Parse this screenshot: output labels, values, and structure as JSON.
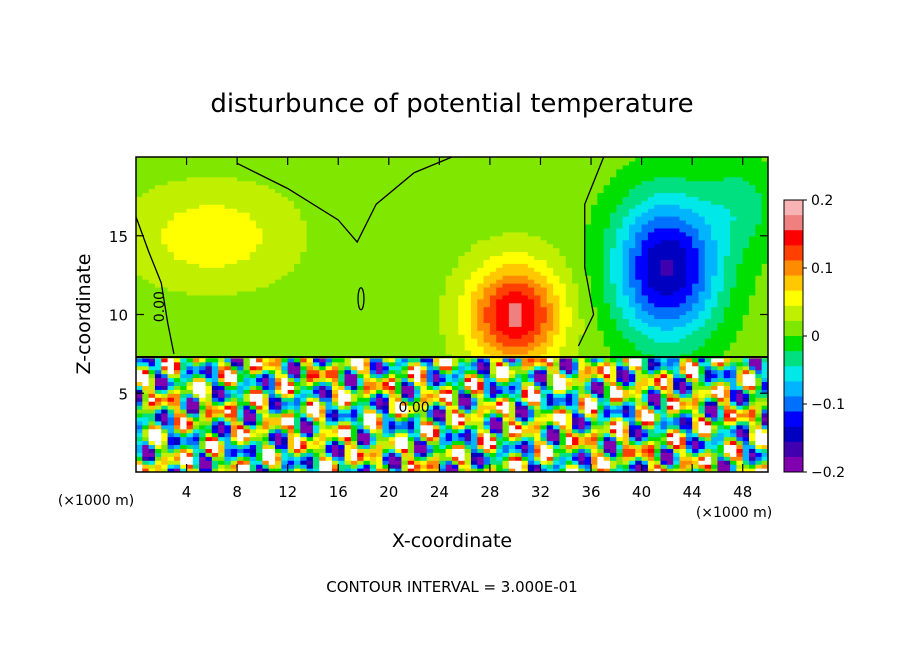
{
  "chart_data": {
    "type": "heatmap",
    "title": "disturbunce of potential temperature",
    "xlabel": "X-coordinate",
    "ylabel": "Z-coordinate",
    "x_unit_left": "(×1000 m)",
    "x_unit_right": "(×1000 m)",
    "footer": "CONTOUR INTERVAL = 3.000E-01",
    "xlim": [
      0,
      50
    ],
    "ylim": [
      0,
      20
    ],
    "x_ticks": [
      4,
      8,
      12,
      16,
      20,
      24,
      28,
      32,
      36,
      40,
      44,
      48
    ],
    "x_tick_labels": [
      "4",
      "8",
      "12",
      "16",
      "20",
      "24",
      "28",
      "32",
      "36",
      "40",
      "44",
      "48"
    ],
    "y_ticks": [
      5,
      10,
      15
    ],
    "y_tick_labels": [
      "5",
      "10",
      "15"
    ],
    "contour_label": "0.00",
    "colorbar": {
      "range": [
        -0.2,
        0.2
      ],
      "ticks": [
        0.2,
        0.1,
        0,
        -0.1,
        -0.2
      ],
      "tick_labels": [
        "0.2",
        "0.1",
        "0",
        "−0.1",
        "−0.2"
      ],
      "colors": [
        "#f8b4b4",
        "#f08080",
        "#ff0000",
        "#ff4000",
        "#ff8c00",
        "#ffc800",
        "#ffff00",
        "#c0f000",
        "#80e800",
        "#00e000",
        "#00e080",
        "#00e8e8",
        "#00b4ff",
        "#0070ff",
        "#0000ff",
        "#0000c0",
        "#4000b0",
        "#8000b0"
      ]
    },
    "features": [
      {
        "name": "warm anomaly",
        "x_center": 30,
        "z_center": 10,
        "peak": 0.15
      },
      {
        "name": "cold anomaly",
        "x_center": 42,
        "z_center": 13,
        "peak": -0.17
      },
      {
        "name": "weak warm region",
        "x_center": 6,
        "z_center": 15,
        "peak": 0.05
      },
      {
        "name": "turbulent boundary layer",
        "z_top": 7.3
      }
    ]
  }
}
